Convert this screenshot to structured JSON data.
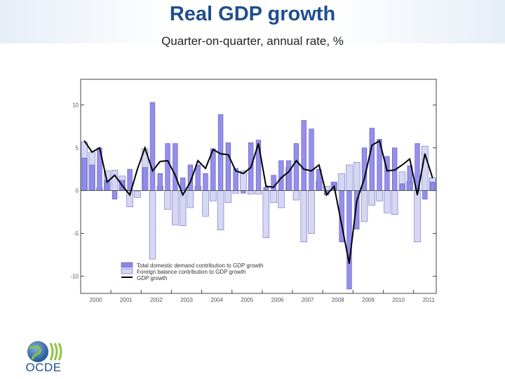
{
  "header": {
    "title": "Real GDP growth",
    "subtitle": "Quarter-on-quarter, annual rate, %"
  },
  "logo": {
    "text": "OCDE"
  },
  "colors": {
    "domestic": "#8b86e6",
    "foreign": "#d6d7f2",
    "line": "#000000",
    "title": "#1f4e8c"
  },
  "chart_data": {
    "type": "bar",
    "ylim": [
      -12,
      13
    ],
    "yticks": [
      10,
      5,
      0,
      -5,
      -10
    ],
    "years": [
      "2000",
      "2001",
      "2002",
      "2003",
      "2004",
      "2005",
      "2006",
      "2007",
      "2008",
      "2009",
      "2010",
      "2011"
    ],
    "x": [
      "2000Q1",
      "2000Q2",
      "2000Q3",
      "2000Q4",
      "2001Q1",
      "2001Q2",
      "2001Q3",
      "2001Q4",
      "2002Q1",
      "2002Q2",
      "2002Q3",
      "2002Q4",
      "2003Q1",
      "2003Q2",
      "2003Q3",
      "2003Q4",
      "2004Q1",
      "2004Q2",
      "2004Q3",
      "2004Q4",
      "2005Q1",
      "2005Q2",
      "2005Q3",
      "2005Q4",
      "2006Q1",
      "2006Q2",
      "2006Q3",
      "2006Q4",
      "2007Q1",
      "2007Q2",
      "2007Q3",
      "2007Q4",
      "2008Q1",
      "2008Q2",
      "2008Q3",
      "2008Q4",
      "2009Q1",
      "2009Q2",
      "2009Q3",
      "2009Q4",
      "2010Q1",
      "2010Q2",
      "2010Q3",
      "2010Q4",
      "2011Q1",
      "2011Q2",
      "2011Q3"
    ],
    "series": [
      {
        "name": "Total domestic demand contribution to GDP growth",
        "style": "bar",
        "values": [
          3.8,
          3.0,
          5.0,
          1.2,
          -1.0,
          1.2,
          2.5,
          0.0,
          2.7,
          10.3,
          2.0,
          5.5,
          5.5,
          1.5,
          3.0,
          3.0,
          2.0,
          4.9,
          8.9,
          5.6,
          2.6,
          -0.3,
          5.6,
          5.9,
          0.4,
          1.8,
          3.5,
          3.5,
          5.5,
          8.2,
          7.2,
          2.5,
          -0.5,
          1.0,
          -6.0,
          -11.5,
          -4.5,
          5.0,
          7.3,
          6.0,
          4.0,
          5.0,
          0.8,
          2.9,
          5.5,
          -1.0,
          1.0
        ]
      },
      {
        "name": "Foreign balance contribution to GDP growth",
        "style": "bar",
        "values": [
          5.7,
          4.5,
          0.3,
          2.3,
          2.4,
          1.7,
          -1.9,
          -0.8,
          4.9,
          -8.0,
          0.5,
          -2.2,
          -4.0,
          -4.1,
          -2.0,
          0.5,
          -3.0,
          -1.2,
          -4.6,
          -1.4,
          -0.3,
          2.3,
          -0.4,
          -0.4,
          -5.5,
          -1.4,
          -2.0,
          2.7,
          -1.1,
          -6.0,
          -5.0,
          1.1,
          0.5,
          1.0,
          2.0,
          3.0,
          3.3,
          -3.6,
          -1.7,
          -1.2,
          -2.6,
          -2.8,
          2.2,
          1.1,
          -6.0,
          5.2,
          1.5
        ]
      },
      {
        "name": "GDP growth",
        "style": "line",
        "values": [
          5.8,
          4.5,
          5.0,
          1.0,
          1.8,
          0.6,
          -0.5,
          2.5,
          5.0,
          2.3,
          3.4,
          3.5,
          1.8,
          -0.5,
          1.0,
          3.5,
          2.6,
          4.8,
          4.3,
          4.2,
          2.3,
          2.0,
          2.7,
          5.5,
          0.5,
          0.4,
          1.5,
          2.2,
          3.5,
          2.5,
          2.3,
          3.0,
          -0.5,
          0.5,
          -4.0,
          -8.5,
          -1.2,
          1.4,
          5.3,
          5.8,
          2.3,
          2.4,
          3.0,
          3.7,
          -0.5,
          4.3,
          1.5
        ]
      }
    ],
    "legend": [
      {
        "label": "Total domestic demand contribution to GDP growth",
        "kind": "domestic"
      },
      {
        "label": "Foreign balance contribution to GDP growth",
        "kind": "foreign"
      },
      {
        "label": "GDP growth",
        "kind": "line"
      }
    ]
  }
}
